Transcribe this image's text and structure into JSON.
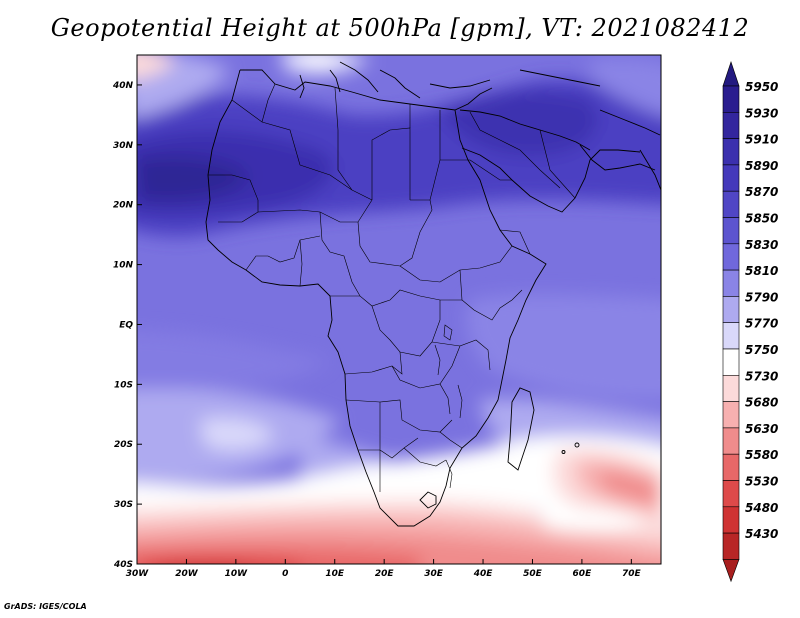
{
  "title": "Geopotential Height at 500hPa [gpm], VT: 2021082412",
  "footer": "GrADS: IGES/COLA",
  "map": {
    "lon_range": [
      -30,
      76
    ],
    "lat_range": [
      -40,
      45
    ],
    "lon_ticks": [
      {
        "v": -30,
        "label": "30W"
      },
      {
        "v": -20,
        "label": "20W"
      },
      {
        "v": -10,
        "label": "10W"
      },
      {
        "v": 0,
        "label": "0"
      },
      {
        "v": 10,
        "label": "10E"
      },
      {
        "v": 20,
        "label": "20E"
      },
      {
        "v": 30,
        "label": "30E"
      },
      {
        "v": 40,
        "label": "40E"
      },
      {
        "v": 50,
        "label": "50E"
      },
      {
        "v": 60,
        "label": "60E"
      },
      {
        "v": 70,
        "label": "70E"
      }
    ],
    "lat_ticks": [
      {
        "v": 40,
        "label": "40N"
      },
      {
        "v": 30,
        "label": "30N"
      },
      {
        "v": 20,
        "label": "20N"
      },
      {
        "v": 10,
        "label": "10N"
      },
      {
        "v": 0,
        "label": "EQ"
      },
      {
        "v": -10,
        "label": "10S"
      },
      {
        "v": -20,
        "label": "20S"
      },
      {
        "v": -30,
        "label": "30S"
      },
      {
        "v": -40,
        "label": "40S"
      }
    ]
  },
  "colorbar": {
    "levels": [
      {
        "label": "5950",
        "color": "#2a1d8f"
      },
      {
        "label": "5930",
        "color": "#33269e"
      },
      {
        "label": "5910",
        "color": "#3b30ae"
      },
      {
        "label": "5890",
        "color": "#4439bb"
      },
      {
        "label": "5870",
        "color": "#5046c5"
      },
      {
        "label": "5850",
        "color": "#5c54cf"
      },
      {
        "label": "5830",
        "color": "#7068dc"
      },
      {
        "label": "5810",
        "color": "#8a84e6"
      },
      {
        "label": "5790",
        "color": "#aeaaf0"
      },
      {
        "label": "5770",
        "color": "#d9d8fa"
      },
      {
        "label": "5750",
        "color": "#ffffff"
      },
      {
        "label": "5730",
        "color": "#fcdada"
      },
      {
        "label": "5680",
        "color": "#f7b0b0"
      },
      {
        "label": "5630",
        "color": "#f08c8c"
      },
      {
        "label": "5580",
        "color": "#e86868"
      },
      {
        "label": "5530",
        "color": "#de4a4a"
      },
      {
        "label": "5480",
        "color": "#cf3333"
      },
      {
        "label": "5430",
        "color": "#b82626"
      }
    ],
    "top_arrow_color": "#231a80",
    "bottom_arrow_color": "#a81e1e"
  }
}
